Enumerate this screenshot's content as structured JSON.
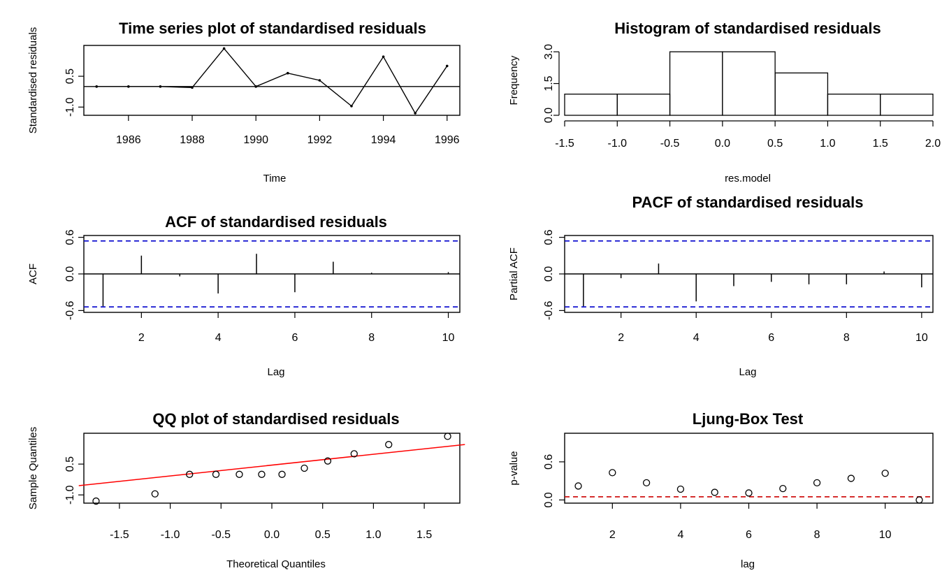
{
  "figure": {
    "chart_data": [
      {
        "type": "line",
        "title": "Time series plot of standardised residuals",
        "xlabel": "Time",
        "ylabel": "Standardised residuals",
        "x_ticks": [
          "1986",
          "1988",
          "1990",
          "1992",
          "1994",
          "1996"
        ],
        "y_ticks": [
          "-1.0",
          "0.5"
        ],
        "xlim": [
          1984.6,
          1996.4
        ],
        "ylim": [
          -1.4,
          2.0
        ],
        "x": [
          1985,
          1986,
          1987,
          1988,
          1989,
          1990,
          1991,
          1992,
          1993,
          1994,
          1995,
          1996
        ],
        "values": [
          0.0,
          0.0,
          0.0,
          -0.05,
          1.85,
          0.0,
          0.65,
          0.3,
          -0.95,
          1.45,
          -1.3,
          1.0
        ],
        "hline": 0
      },
      {
        "type": "bar",
        "title": "Histogram of standardised residuals",
        "xlabel": "res.model",
        "ylabel": "Frequency",
        "x_ticks": [
          "-1.5",
          "-1.0",
          "-0.5",
          "0.0",
          "0.5",
          "1.0",
          "1.5",
          "2.0"
        ],
        "y_ticks": [
          "0.0",
          "1.5",
          "3.0"
        ],
        "bin_edges": [
          -1.5,
          -1.0,
          -0.5,
          0.0,
          0.5,
          1.0,
          1.5,
          2.0
        ],
        "values": [
          1,
          1,
          3,
          3,
          2,
          1,
          1
        ],
        "xlim": [
          -1.5,
          2.0
        ],
        "ylim": [
          0,
          3.3
        ]
      },
      {
        "type": "bar",
        "title": "ACF of standardised residuals",
        "xlabel": "Lag",
        "ylabel": "ACF",
        "x_ticks": [
          "2",
          "4",
          "6",
          "8",
          "10"
        ],
        "y_ticks": [
          "-0.6",
          "0.0",
          "0.6"
        ],
        "x": [
          1,
          2,
          3,
          4,
          5,
          6,
          7,
          8,
          9,
          10
        ],
        "values": [
          -0.53,
          0.3,
          -0.04,
          -0.32,
          0.33,
          -0.3,
          0.2,
          0.02,
          0.0,
          0.03
        ],
        "ci": [
          -0.54,
          0.54
        ],
        "xlim": [
          0.5,
          10.3
        ],
        "ylim": [
          -0.63,
          0.63
        ]
      },
      {
        "type": "bar",
        "title": "PACF of standardised residuals",
        "xlabel": "Lag",
        "ylabel": "Partial ACF",
        "x_ticks": [
          "2",
          "4",
          "6",
          "8",
          "10"
        ],
        "y_ticks": [
          "-0.6",
          "0.0",
          "0.6"
        ],
        "x": [
          1,
          2,
          3,
          4,
          5,
          6,
          7,
          8,
          9,
          10
        ],
        "values": [
          -0.53,
          -0.07,
          0.17,
          -0.45,
          -0.2,
          -0.13,
          -0.17,
          -0.17,
          0.04,
          -0.22
        ],
        "ci": [
          -0.54,
          0.54
        ],
        "xlim": [
          0.5,
          10.3
        ],
        "ylim": [
          -0.63,
          0.63
        ]
      },
      {
        "type": "scatter",
        "title": "QQ plot of standardised residuals",
        "xlabel": "Theoretical Quantiles",
        "ylabel": "Sample Quantiles",
        "x_ticks": [
          "-1.5",
          "-1.0",
          "-0.5",
          "0.0",
          "0.5",
          "1.0",
          "1.5"
        ],
        "y_ticks": [
          "-1.0",
          "0.5"
        ],
        "x": [
          -1.73,
          -1.15,
          -0.81,
          -0.55,
          -0.32,
          -0.1,
          0.1,
          0.32,
          0.55,
          0.81,
          1.15,
          1.73
        ],
        "values": [
          -1.3,
          -0.95,
          0.0,
          0.0,
          0.0,
          0.0,
          0.0,
          0.3,
          0.65,
          1.0,
          1.45,
          1.85
        ],
        "qq_line": {
          "x": [
            -1.9,
            1.9
          ],
          "y": [
            -0.55,
            1.45
          ]
        },
        "xlim": [
          -1.85,
          1.85
        ],
        "ylim": [
          -1.4,
          2.0
        ]
      },
      {
        "type": "scatter",
        "title": "Ljung-Box Test",
        "xlabel": "lag",
        "ylabel": "p-value",
        "x_ticks": [
          "2",
          "4",
          "6",
          "8",
          "10"
        ],
        "y_ticks": [
          "0.0",
          "0.6"
        ],
        "x": [
          1,
          2,
          3,
          4,
          5,
          6,
          7,
          8,
          9,
          10,
          11
        ],
        "values": [
          0.22,
          0.43,
          0.27,
          0.17,
          0.12,
          0.11,
          0.18,
          0.27,
          0.34,
          0.42,
          0.0
        ],
        "threshold": 0.05,
        "xlim": [
          0.6,
          11.4
        ],
        "ylim": [
          -0.05,
          1.05
        ]
      }
    ],
    "colors": {
      "ink": "#000000",
      "ci_line": "#0000cc",
      "qq_line": "#ff0000",
      "threshold_line": "#cc0000"
    }
  }
}
